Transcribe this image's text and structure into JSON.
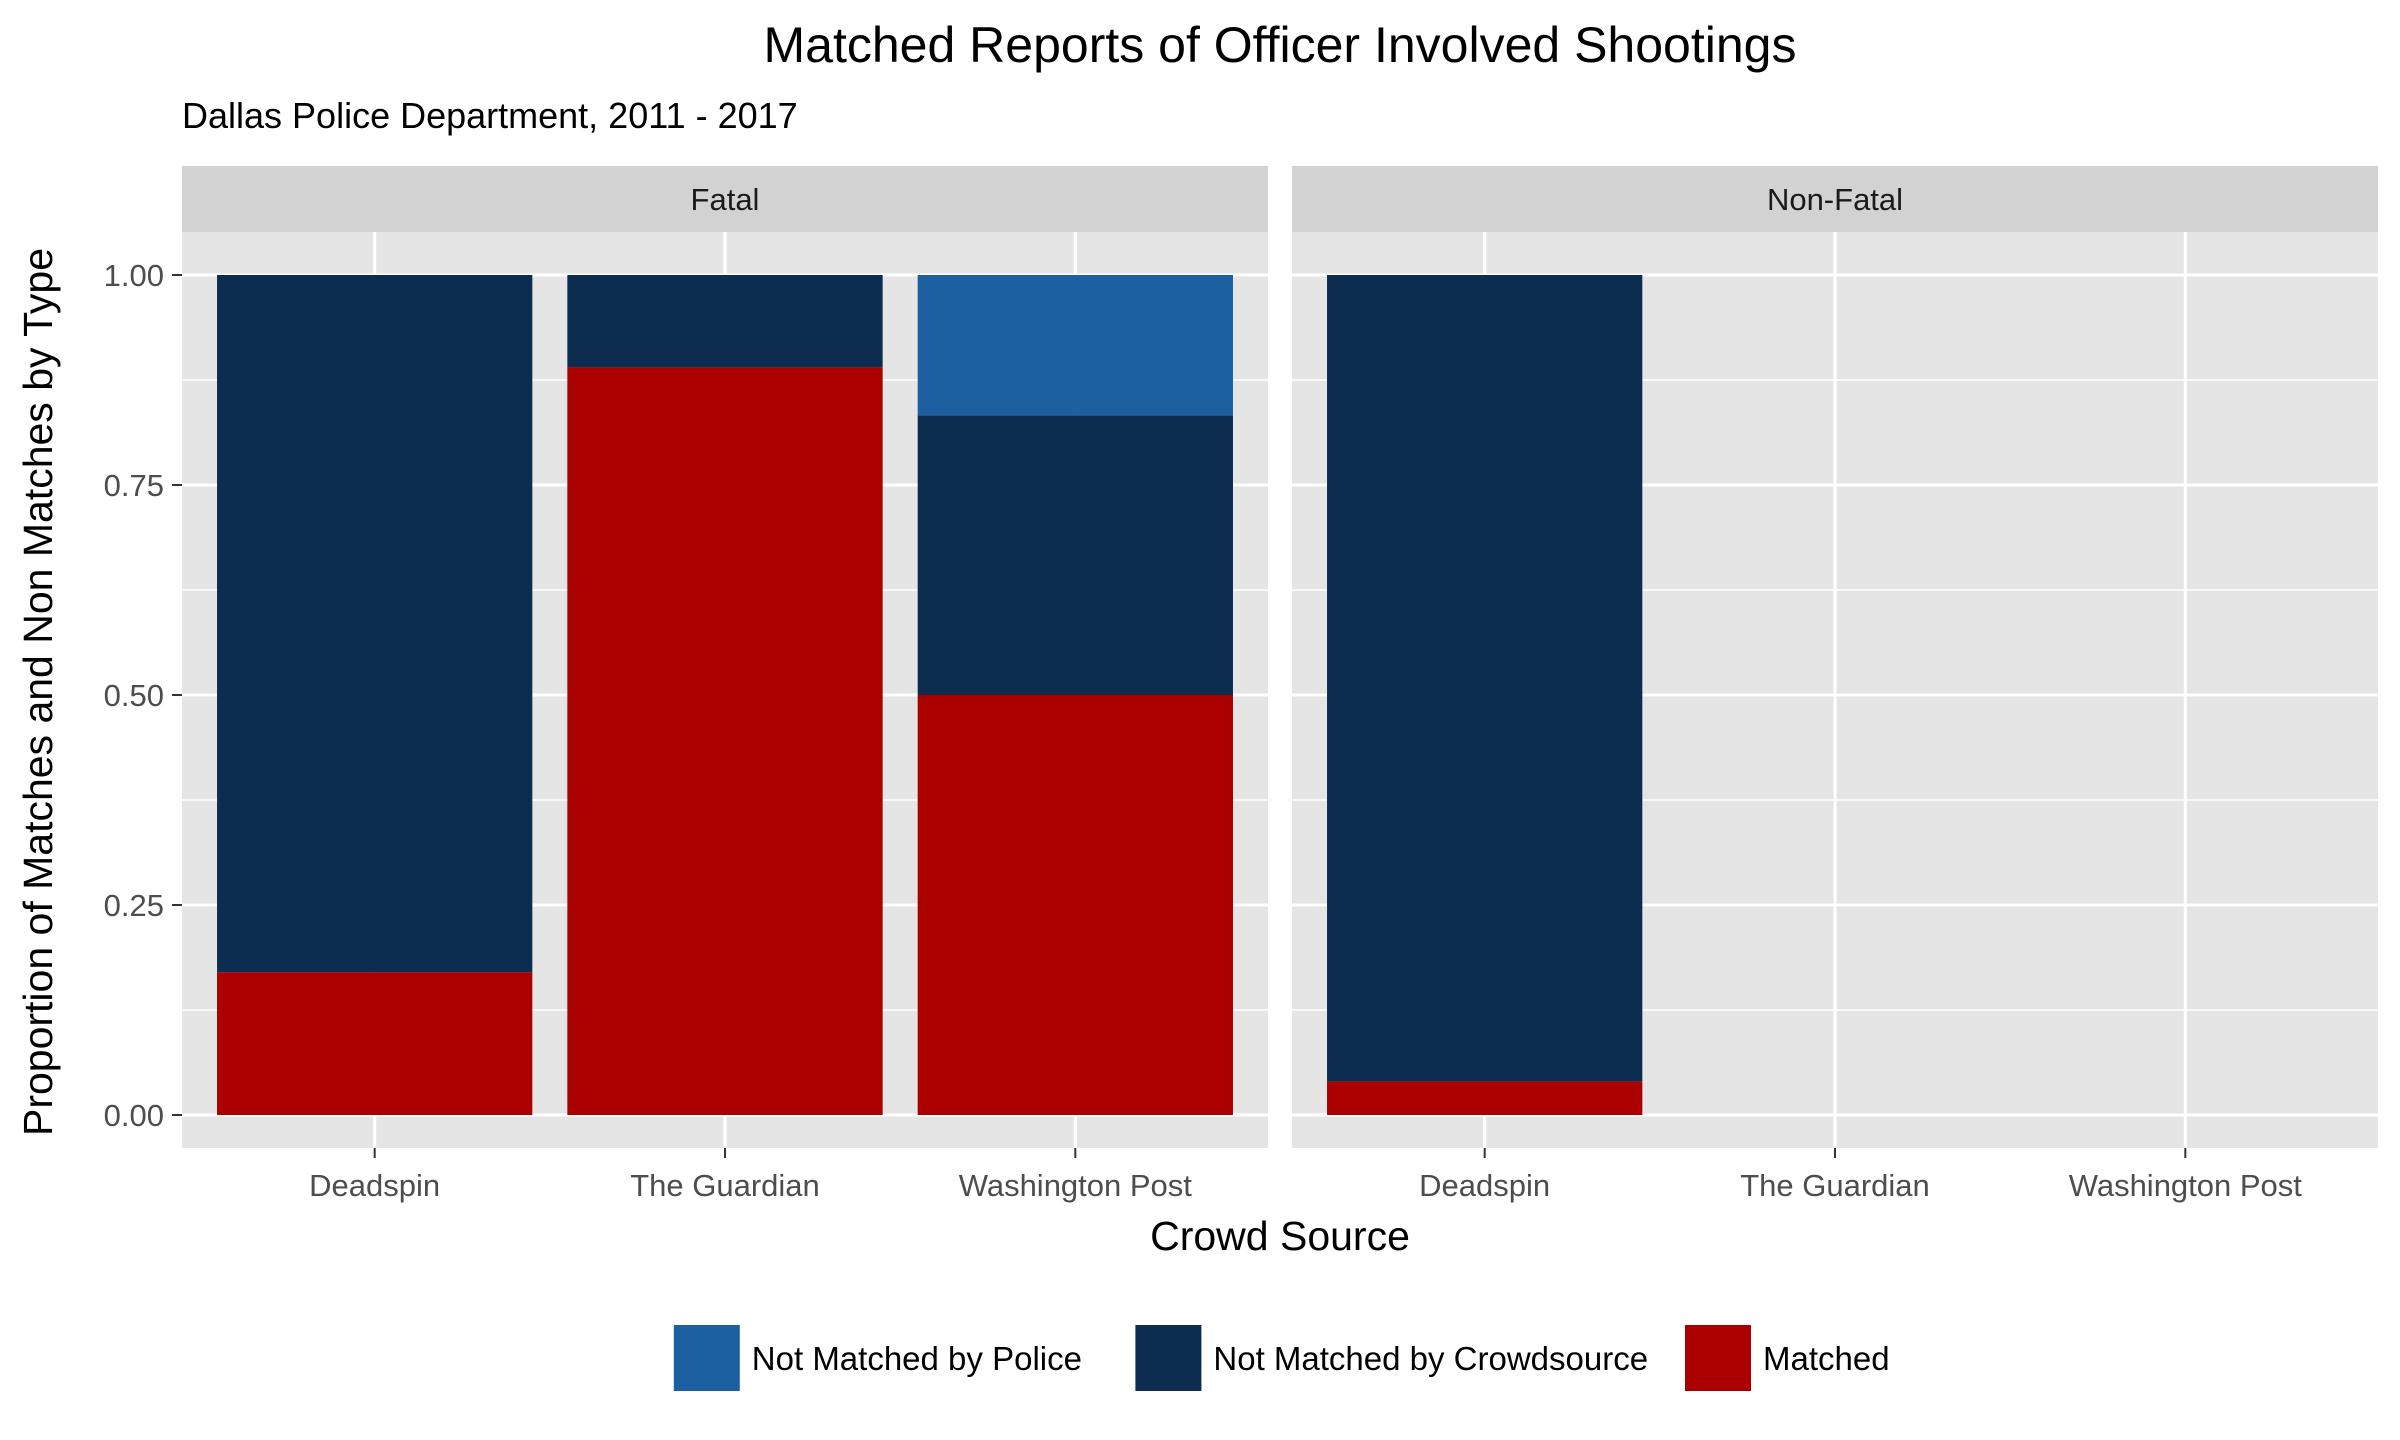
{
  "chart_data": {
    "type": "bar",
    "stacked": true,
    "title": "Matched Reports of Officer Involved Shootings",
    "subtitle": "Dallas Police Department, 2011 - 2017",
    "xlabel": "Crowd Source",
    "ylabel": "Proportion of Matches and Non Matches by Type",
    "ylim": [
      0,
      1.1
    ],
    "yticks": [
      "0.00",
      "0.25",
      "0.50",
      "0.75",
      "1.00"
    ],
    "categories": [
      "Deadspin",
      "The Guardian",
      "Washington Post"
    ],
    "legend_position": "bottom",
    "grid": true,
    "panels": [
      {
        "label": "Fatal",
        "series": [
          {
            "name": "Matched",
            "color": "#AA0000",
            "values": [
              0.17,
              0.89,
              0.5
            ]
          },
          {
            "name": "Not Matched by Crowdsource",
            "color": "#0C2C50",
            "values": [
              0.83,
              0.11,
              0.333
            ]
          },
          {
            "name": "Not Matched by Police",
            "color": "#1C60A1",
            "values": [
              0,
              0,
              0.167
            ]
          }
        ]
      },
      {
        "label": "Non-Fatal",
        "series": [
          {
            "name": "Matched",
            "color": "#AA0000",
            "values": [
              0.04,
              0,
              0
            ]
          },
          {
            "name": "Not Matched by Crowdsource",
            "color": "#0C2C50",
            "values": [
              0.96,
              0,
              0
            ]
          },
          {
            "name": "Not Matched by Police",
            "color": "#1C60A1",
            "values": [
              0,
              0,
              0
            ]
          }
        ]
      }
    ],
    "legend": [
      {
        "name": "Not Matched by Police",
        "color": "#1C60A1"
      },
      {
        "name": "Not Matched by Crowdsource",
        "color": "#0C2C50"
      },
      {
        "name": "Matched",
        "color": "#AA0000"
      }
    ],
    "colors": {
      "panel_background": "#E5E5E5",
      "strip_background": "#D2D2D2",
      "grid": "#FFFFFF"
    }
  }
}
